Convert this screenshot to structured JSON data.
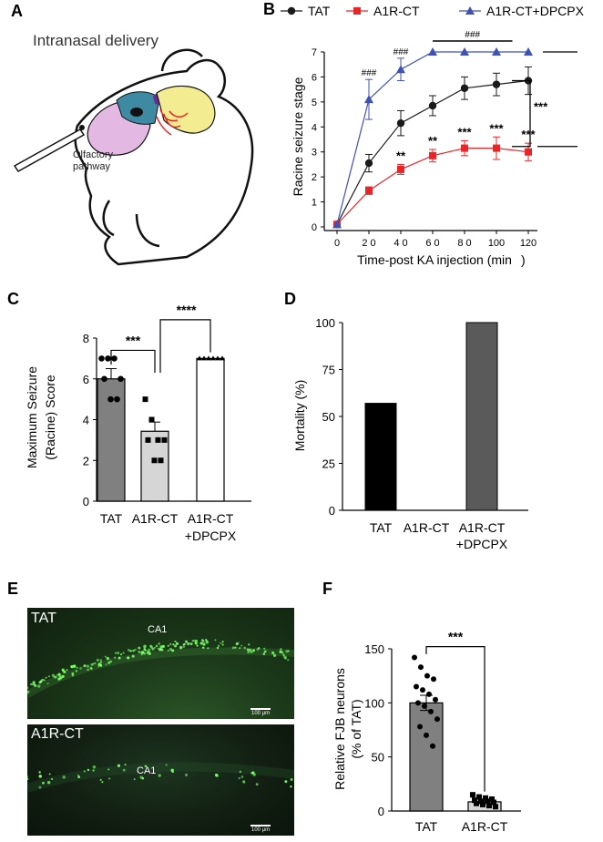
{
  "panels": {
    "a": "A",
    "b": "B",
    "c": "C",
    "d": "D",
    "e": "E",
    "f": "F"
  },
  "panel_a": {
    "title": "Intranasal delivery",
    "pathway_line1": "Olfactory",
    "pathway_line2": "pathway"
  },
  "panel_e": {
    "image1_label": "TAT",
    "image1_region": "CA1",
    "image2_label": "A1R-CT",
    "image2_region": "CA1",
    "scale": "100 μm"
  },
  "colors": {
    "tat": "#1a1a1a",
    "a1r_ct": "#e8262a",
    "a1r_ct_dpcpx": "#3f51b5",
    "bar_dark": "#808080",
    "bar_light": "#d6d6d6",
    "micro_green": "#2e7d32"
  },
  "chart_data": [
    {
      "panel": "B",
      "type": "line",
      "xlabel": "Time-post KA injection (min",
      "ylabel": "Racine seizure stage",
      "x": [
        0,
        20,
        40,
        60,
        80,
        100,
        120
      ],
      "x_tick_labels": [
        "0",
        "2 0",
        "4 0",
        "6 0",
        "8 0",
        "100",
        "120"
      ],
      "ylim": [
        0,
        7
      ],
      "y_ticks": [
        0,
        1,
        2,
        3,
        4,
        5,
        6,
        7
      ],
      "legend_position": "top",
      "series": [
        {
          "name": "TAT",
          "marker": "circle",
          "values": [
            0.1,
            2.55,
            4.15,
            4.85,
            5.55,
            5.7,
            5.85
          ],
          "errors": [
            0,
            0.35,
            0.5,
            0.4,
            0.45,
            0.45,
            0.55
          ]
        },
        {
          "name": "A1R-CT",
          "marker": "square",
          "values": [
            0.1,
            1.45,
            2.3,
            2.85,
            3.15,
            3.15,
            3.0
          ],
          "errors": [
            0,
            0.15,
            0.2,
            0.25,
            0.3,
            0.45,
            0.35
          ]
        },
        {
          "name": "A1R-CT+DPCPX",
          "marker": "triangle",
          "values": [
            0.1,
            5.1,
            6.3,
            7.0,
            7.0,
            7.0,
            7.0
          ],
          "errors": [
            0,
            0.8,
            0.45,
            0,
            0,
            0,
            0
          ]
        }
      ],
      "annotations": {
        "hash_symbol": "###",
        "hash_x": [
          20,
          40
        ],
        "hash_span": [
          60,
          110
        ],
        "star_labels": [
          "**",
          "**",
          "***",
          "***",
          "***"
        ],
        "star_x": [
          40,
          60,
          80,
          100,
          120
        ],
        "overall": "***"
      }
    },
    {
      "panel": "C",
      "type": "bar",
      "ylabel_line1": "Maximum Seizure",
      "ylabel_line2": "(Racine) Score",
      "categories": [
        "TAT",
        "A1R-CT",
        "A1R-CT"
      ],
      "category_line2": [
        "",
        "",
        "+DPCPX"
      ],
      "values": [
        6.0,
        3.43,
        7.0
      ],
      "errors": [
        0.5,
        0.45,
        0
      ],
      "points": [
        [
          7,
          7,
          7,
          6,
          6,
          5,
          5
        ],
        [
          5,
          4,
          3,
          3,
          3,
          2,
          2
        ],
        [
          7,
          7,
          7,
          7,
          7,
          7
        ]
      ],
      "ylim": [
        0,
        8
      ],
      "y_ticks": [
        0,
        2,
        4,
        6,
        8
      ],
      "significance": [
        "***",
        "****"
      ]
    },
    {
      "panel": "D",
      "type": "bar",
      "ylabel": "Mortality (%)",
      "categories": [
        "TAT",
        "A1R-CT",
        "A1R-CT"
      ],
      "category_line2": [
        "",
        "",
        "+DPCPX"
      ],
      "values": [
        57,
        0,
        100
      ],
      "ylim": [
        0,
        100
      ],
      "y_ticks": [
        0,
        25,
        50,
        75,
        100
      ]
    },
    {
      "panel": "F",
      "type": "bar",
      "ylabel_line1": "Relative FJB neurons",
      "ylabel_line2": "(% of TAT)",
      "categories": [
        "TAT",
        "A1R-CT"
      ],
      "values": [
        100,
        8.5
      ],
      "errors": [
        7,
        1.5
      ],
      "points": [
        [
          142,
          133,
          125,
          122,
          115,
          112,
          108,
          103,
          100,
          97,
          92,
          85,
          78,
          70,
          60
        ],
        [
          15,
          13,
          12,
          11,
          10,
          9,
          9,
          8,
          7,
          6,
          5,
          4
        ]
      ],
      "ylim": [
        0,
        150
      ],
      "y_ticks": [
        0,
        50,
        100,
        150
      ],
      "significance": "***"
    }
  ]
}
